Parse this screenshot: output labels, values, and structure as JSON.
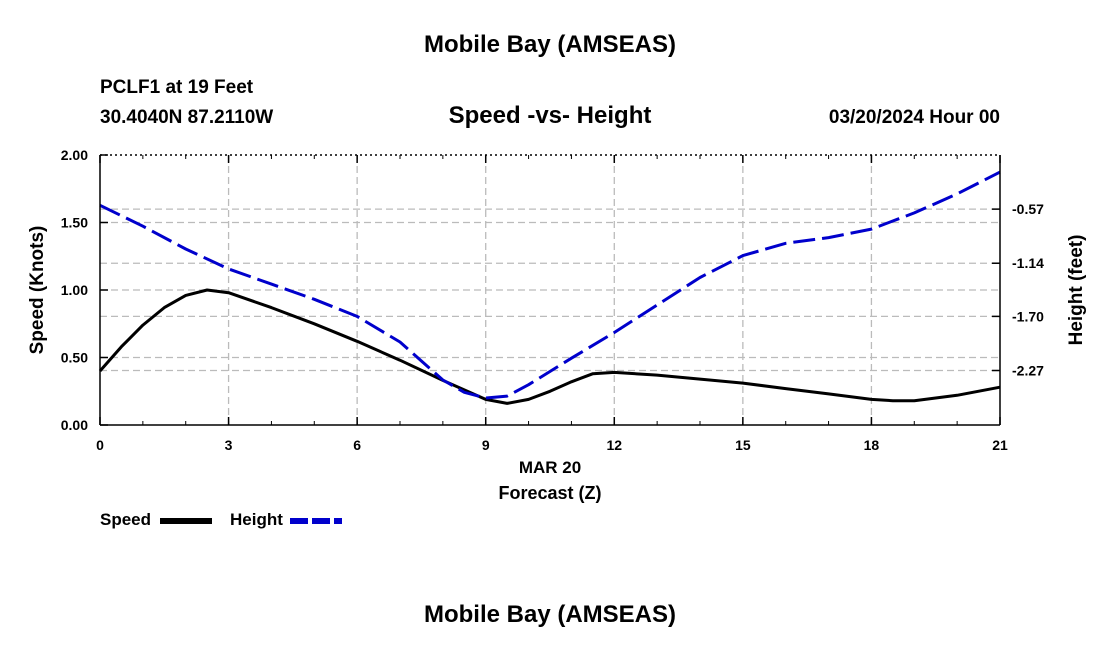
{
  "header": {
    "title_top": "Mobile Bay (AMSEAS)",
    "station": "PCLF1 at 19 Feet",
    "coords": "30.4040N  87.2110W",
    "subtitle": "Speed -vs- Height",
    "datetime": "03/20/2024 Hour 00"
  },
  "footer": {
    "title_bottom": "Mobile Bay (AMSEAS)"
  },
  "chart_data": {
    "type": "line",
    "x_axis": {
      "label": "Forecast (Z)",
      "date_label": "MAR 20",
      "range": [
        0,
        21
      ],
      "ticks": [
        0,
        3,
        6,
        9,
        12,
        15,
        18,
        21
      ],
      "tick_labels": [
        "0",
        "3",
        "6",
        "9",
        "12",
        "15",
        "18",
        "21"
      ]
    },
    "y_left": {
      "label": "Speed (Knots)",
      "range": [
        0,
        2
      ],
      "ticks": [
        0,
        0.5,
        1,
        1.5,
        2
      ],
      "tick_labels": [
        "0.00",
        "0.50",
        "1.00",
        "1.50",
        "2.00"
      ]
    },
    "y_right": {
      "label": "Height (feet)",
      "range": [
        -2.844,
        0.0
      ],
      "ticks": [
        -0.57,
        -1.14,
        -1.7,
        -2.27
      ],
      "tick_labels": [
        "-0.57",
        "-1.14",
        "-1.70",
        "-2.27"
      ]
    },
    "grid": true,
    "legend_position": "bottom-left",
    "series": [
      {
        "name": "Speed",
        "axis": "left",
        "color": "#000000",
        "style": "solid",
        "x": [
          0,
          0.5,
          1,
          1.5,
          2,
          2.5,
          3,
          4,
          5,
          6,
          7,
          8,
          9,
          9.5,
          10,
          10.5,
          11,
          11.5,
          12,
          13,
          14,
          15,
          16,
          17,
          18,
          18.5,
          19,
          20,
          21
        ],
        "values": [
          0.4,
          0.58,
          0.74,
          0.87,
          0.96,
          1.0,
          0.98,
          0.87,
          0.75,
          0.62,
          0.48,
          0.33,
          0.19,
          0.16,
          0.19,
          0.25,
          0.32,
          0.38,
          0.39,
          0.37,
          0.34,
          0.31,
          0.27,
          0.23,
          0.19,
          0.18,
          0.18,
          0.22,
          0.28
        ]
      },
      {
        "name": "Height",
        "axis": "right",
        "color": "#0000cc",
        "style": "dashed",
        "x": [
          0,
          1,
          2,
          3,
          4,
          5,
          6,
          7,
          8,
          8.5,
          9,
          9.5,
          10,
          11,
          12,
          13,
          14,
          15,
          16,
          17,
          18,
          19,
          20,
          21
        ],
        "values": [
          -0.53,
          -0.75,
          -0.99,
          -1.2,
          -1.36,
          -1.52,
          -1.7,
          -1.97,
          -2.37,
          -2.5,
          -2.56,
          -2.54,
          -2.42,
          -2.14,
          -1.87,
          -1.58,
          -1.29,
          -1.06,
          -0.93,
          -0.87,
          -0.78,
          -0.61,
          -0.41,
          -0.18
        ]
      }
    ]
  }
}
